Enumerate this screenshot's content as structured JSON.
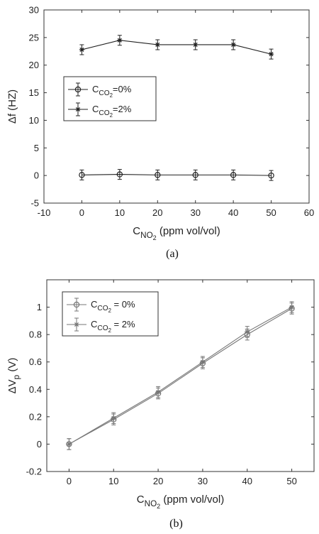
{
  "chart_data": [
    {
      "type": "line",
      "panel_label": "(a)",
      "xlabel": {
        "base": "C",
        "sub": "NO",
        "sub2": "2",
        "rest": " (ppm vol/vol)"
      },
      "ylabel": {
        "prefix": "Δf",
        "rest": " (HZ)"
      },
      "xlim": [
        -10,
        60
      ],
      "ylim": [
        -5,
        30
      ],
      "xticks": [
        "-10",
        "0",
        "10",
        "20",
        "30",
        "40",
        "50",
        "60"
      ],
      "yticks": [
        "-5",
        "0",
        "5",
        "10",
        "15",
        "20",
        "25",
        "30"
      ],
      "grid": false,
      "legend_position": "middle-left",
      "x": [
        0,
        10,
        20,
        30,
        40,
        50
      ],
      "series": [
        {
          "name": "C_CO2=0%",
          "legend": {
            "base": "C",
            "sub": "CO",
            "sub2": "2",
            "rest": "=0%"
          },
          "marker": "circle",
          "color": "#222222",
          "values": [
            0.1,
            0.2,
            0.1,
            0.1,
            0.1,
            0.0
          ],
          "errors": [
            0.9,
            0.9,
            0.9,
            0.9,
            0.9,
            0.9
          ]
        },
        {
          "name": "C_CO2=2%",
          "legend": {
            "base": "C",
            "sub": "CO",
            "sub2": "2",
            "rest": "=2%"
          },
          "marker": "star",
          "color": "#222222",
          "values": [
            22.8,
            24.5,
            23.7,
            23.7,
            23.7,
            22.0
          ],
          "errors": [
            0.9,
            0.9,
            0.9,
            0.9,
            0.9,
            0.9
          ]
        }
      ]
    },
    {
      "type": "line",
      "panel_label": "(b)",
      "xlabel": {
        "base": "C",
        "sub": "NO",
        "sub2": "2",
        "rest": " (ppm vol/vol)"
      },
      "ylabel": {
        "prefix": "ΔV",
        "sub": "p",
        "rest": " (V)"
      },
      "xlim": [
        -5,
        55
      ],
      "ylim": [
        -0.2,
        1.2
      ],
      "xticks": [
        "0",
        "10",
        "20",
        "30",
        "40",
        "50"
      ],
      "yticks": [
        "-0.2",
        "0",
        "0.2",
        "0.4",
        "0.6",
        "0.8",
        "1"
      ],
      "grid": false,
      "legend_position": "top-left",
      "x": [
        0,
        10,
        20,
        30,
        40,
        50
      ],
      "series": [
        {
          "name": "C_CO2 = 0%",
          "legend": {
            "base": "C",
            "sub": "CO",
            "sub2": "2",
            "rest": " = 0%"
          },
          "marker": "circle",
          "color": "#777777",
          "values": [
            0.0,
            0.18,
            0.37,
            0.59,
            0.8,
            0.99
          ],
          "errors": [
            0.04,
            0.04,
            0.04,
            0.04,
            0.04,
            0.04
          ]
        },
        {
          "name": "C_CO2 = 2%",
          "legend": {
            "base": "C",
            "sub": "CO",
            "sub2": "2",
            "rest": " = 2%"
          },
          "marker": "star",
          "color": "#777777",
          "values": [
            0.0,
            0.19,
            0.38,
            0.6,
            0.82,
            1.0
          ],
          "errors": [
            0.04,
            0.04,
            0.04,
            0.04,
            0.04,
            0.04
          ]
        }
      ]
    }
  ]
}
